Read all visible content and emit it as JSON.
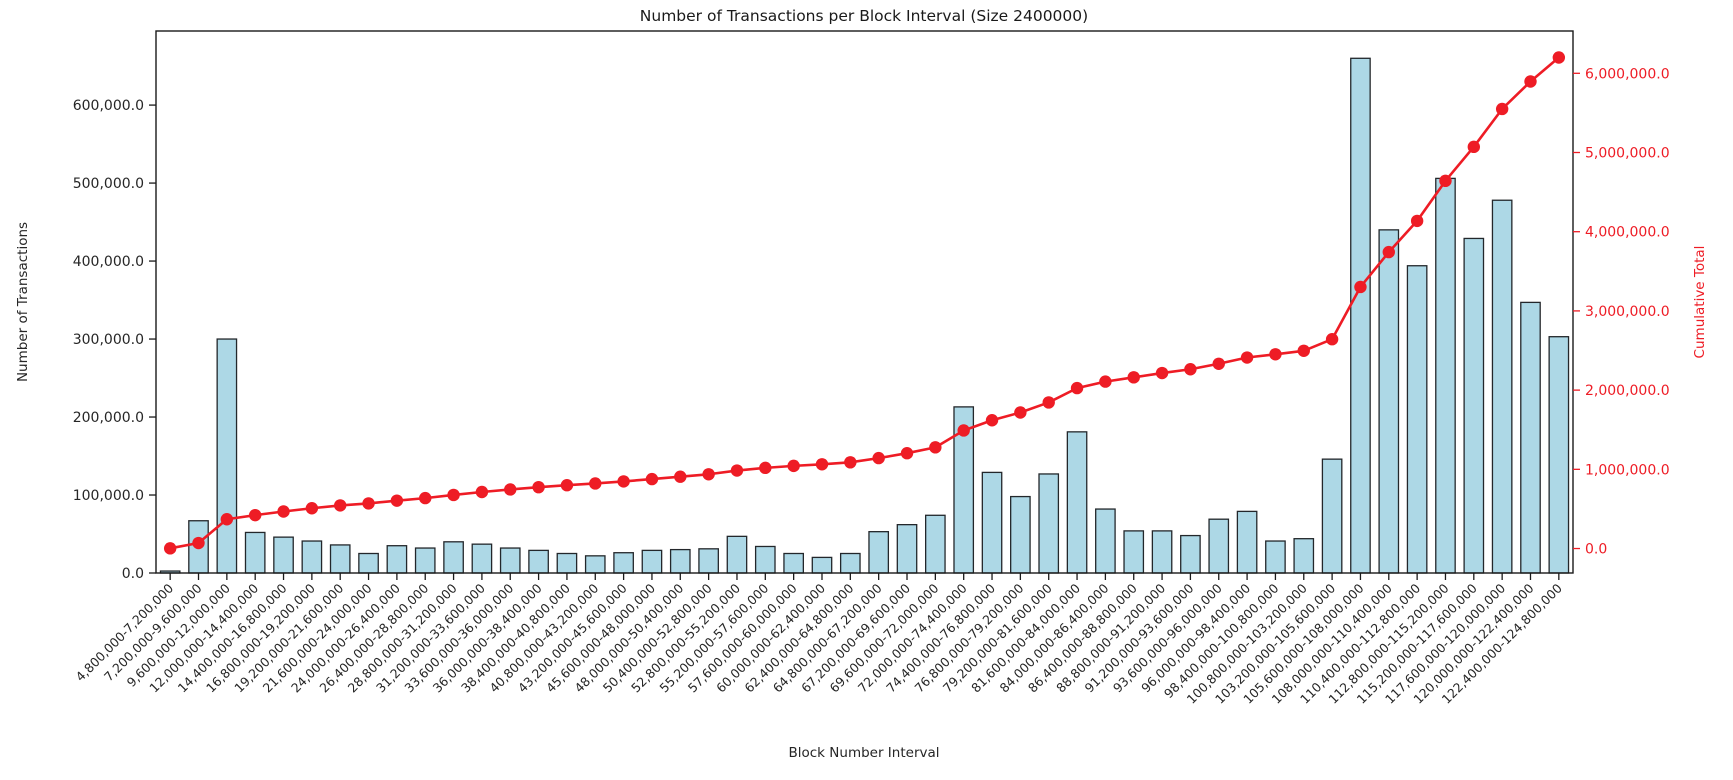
{
  "figure": {
    "title": "Number of Transactions per Block Interval (Size 2400000)",
    "background": "#ffffff"
  },
  "chart_data": {
    "type": "bar",
    "title": "Number of Transactions per Block Interval (Size 2400000)",
    "xlabel": "Block Number Interval",
    "ylabel_left": "Number of Transactions",
    "ylabel_right": "Cumulative Total",
    "grid": false,
    "legend": "none",
    "categories": [
      "4,800,000-7,200,000",
      "7,200,000-9,600,000",
      "9,600,000-12,000,000",
      "12,000,000-14,400,000",
      "14,400,000-16,800,000",
      "16,800,000-19,200,000",
      "19,200,000-21,600,000",
      "21,600,000-24,000,000",
      "24,000,000-26,400,000",
      "26,400,000-28,800,000",
      "28,800,000-31,200,000",
      "31,200,000-33,600,000",
      "33,600,000-36,000,000",
      "36,000,000-38,400,000",
      "38,400,000-40,800,000",
      "40,800,000-43,200,000",
      "43,200,000-45,600,000",
      "45,600,000-48,000,000",
      "48,000,000-50,400,000",
      "50,400,000-52,800,000",
      "52,800,000-55,200,000",
      "55,200,000-57,600,000",
      "57,600,000-60,000,000",
      "60,000,000-62,400,000",
      "62,400,000-64,800,000",
      "64,800,000-67,200,000",
      "67,200,000-69,600,000",
      "69,600,000-72,000,000",
      "72,000,000-74,400,000",
      "74,400,000-76,800,000",
      "76,800,000-79,200,000",
      "79,200,000-81,600,000",
      "81,600,000-84,000,000",
      "84,000,000-86,400,000",
      "86,400,000-88,800,000",
      "88,800,000-91,200,000",
      "91,200,000-93,600,000",
      "93,600,000-96,000,000",
      "96,000,000-98,400,000",
      "98,400,000-100,800,000",
      "100,800,000-103,200,000",
      "103,200,000-105,600,000",
      "105,600,000-108,000,000",
      "108,000,000-110,400,000",
      "110,400,000-112,800,000",
      "112,800,000-115,200,000",
      "115,200,000-117,600,000",
      "117,600,000-120,000,000",
      "120,000,000-122,400,000",
      "122,400,000-124,800,000"
    ],
    "series": [
      {
        "name": "Number of Transactions",
        "type": "bar",
        "axis": "left",
        "values": [
          2500,
          67000,
          300000,
          52000,
          46000,
          41000,
          36000,
          25000,
          35000,
          32000,
          40000,
          37000,
          32000,
          29000,
          25000,
          22000,
          26000,
          29000,
          30000,
          31000,
          47000,
          34000,
          25000,
          20000,
          25000,
          53000,
          62000,
          74000,
          213000,
          129000,
          98000,
          127000,
          181000,
          82000,
          54000,
          54000,
          48000,
          69000,
          79000,
          41000,
          44000,
          146000,
          660000,
          440000,
          394000,
          506000,
          429000,
          478000,
          347000,
          303000
        ]
      },
      {
        "name": "Cumulative Total",
        "type": "line",
        "axis": "right",
        "values": [
          2500,
          69500,
          369500,
          421500,
          467500,
          508500,
          544500,
          569500,
          604500,
          636500,
          676500,
          713500,
          745500,
          774500,
          799500,
          821500,
          847500,
          876500,
          906500,
          937500,
          984500,
          1018500,
          1043500,
          1063500,
          1088500,
          1141500,
          1203500,
          1277500,
          1490500,
          1619500,
          1717500,
          1844500,
          2025500,
          2107500,
          2161500,
          2215500,
          2263500,
          2332500,
          2411500,
          2452500,
          2496500,
          2642500,
          3302500,
          3742500,
          4136500,
          4642500,
          5071500,
          5549500,
          5896500,
          6199500
        ]
      }
    ],
    "yticks_left": {
      "values": [
        0,
        100000,
        200000,
        300000,
        400000,
        500000,
        600000
      ],
      "labels": [
        "0.0",
        "100,000.0",
        "200,000.0",
        "300,000.0",
        "400,000.0",
        "500,000.0",
        "600,000.0"
      ]
    },
    "yticks_right": {
      "values": [
        0,
        1000000,
        2000000,
        3000000,
        4000000,
        5000000,
        6000000
      ],
      "labels": [
        "0.0",
        "1,000,000.0",
        "2,000,000.0",
        "3,000,000.0",
        "4,000,000.0",
        "5,000,000.0",
        "6,000,000.0"
      ]
    },
    "ylim_left": [
      0,
      695000
    ],
    "ylim_right": [
      -309000,
      6534000
    ],
    "colors": {
      "bar_fill": "#add8e6",
      "bar_edge": "#23272b",
      "line": "#ee1c25",
      "axis": "#1a1a1a",
      "left_text": "#262626",
      "right_text": "#ee1c25"
    }
  }
}
